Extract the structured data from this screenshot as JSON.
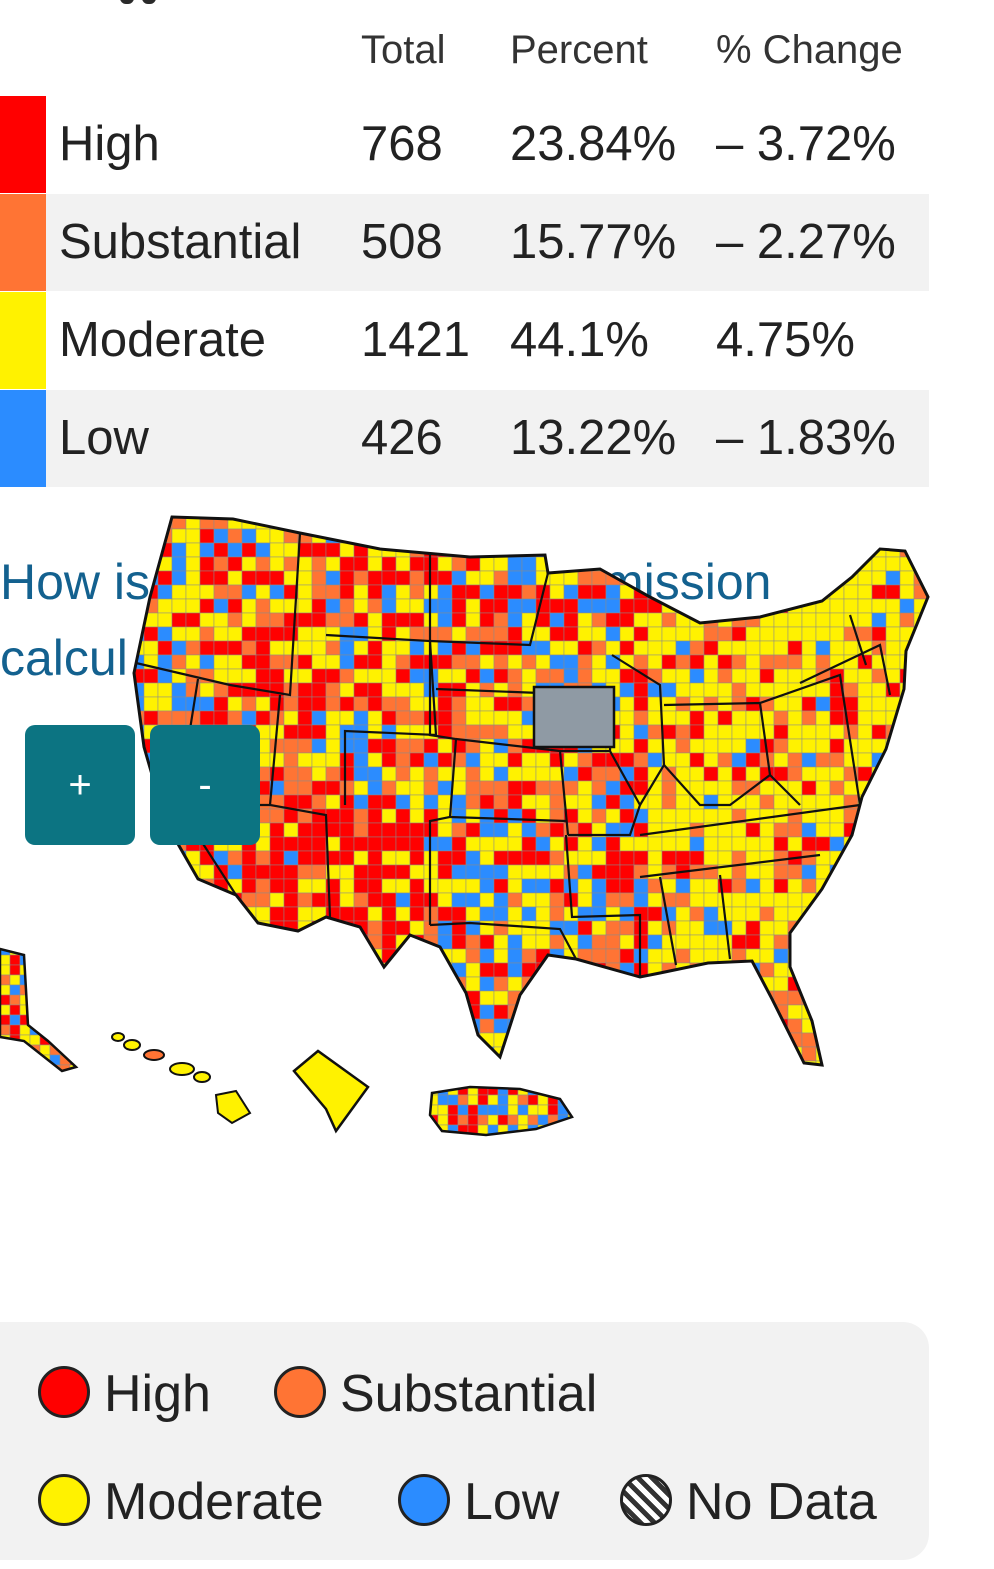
{
  "table": {
    "headers": {
      "total": "Total",
      "percent": "Percent",
      "change": "% Change"
    },
    "rows": [
      {
        "level": "High",
        "total": "768",
        "percent": "23.84%",
        "change": "– 3.72%",
        "color": "#ff0000"
      },
      {
        "level": "Substantial",
        "total": "508",
        "percent": "15.77%",
        "change": "– 2.27%",
        "color": "#ff7434"
      },
      {
        "level": "Moderate",
        "total": "1421",
        "percent": "44.1%",
        "change": "4.75%",
        "color": "#fff200"
      },
      {
        "level": "Low",
        "total": "426",
        "percent": "13.22%",
        "change": "– 1.83%",
        "color": "#2b8cff"
      }
    ]
  },
  "link": {
    "line1_left": "How is",
    "line1_right": "mission",
    "line2": "calcul"
  },
  "zoom": {
    "in_label": "+",
    "out_label": "-"
  },
  "legend": {
    "items": [
      {
        "label": "High",
        "color": "#ff0000"
      },
      {
        "label": "Substantial",
        "color": "#ff7434"
      },
      {
        "label": "Moderate",
        "color": "#fff200"
      },
      {
        "label": "Low",
        "color": "#2b8cff"
      },
      {
        "label": "No Data",
        "color": "hatched"
      }
    ]
  },
  "colors": {
    "accent": "#0c7482",
    "link": "#13618f",
    "no_data_gray": "#8f9aa4",
    "row_alt": "#f2f2f2"
  }
}
